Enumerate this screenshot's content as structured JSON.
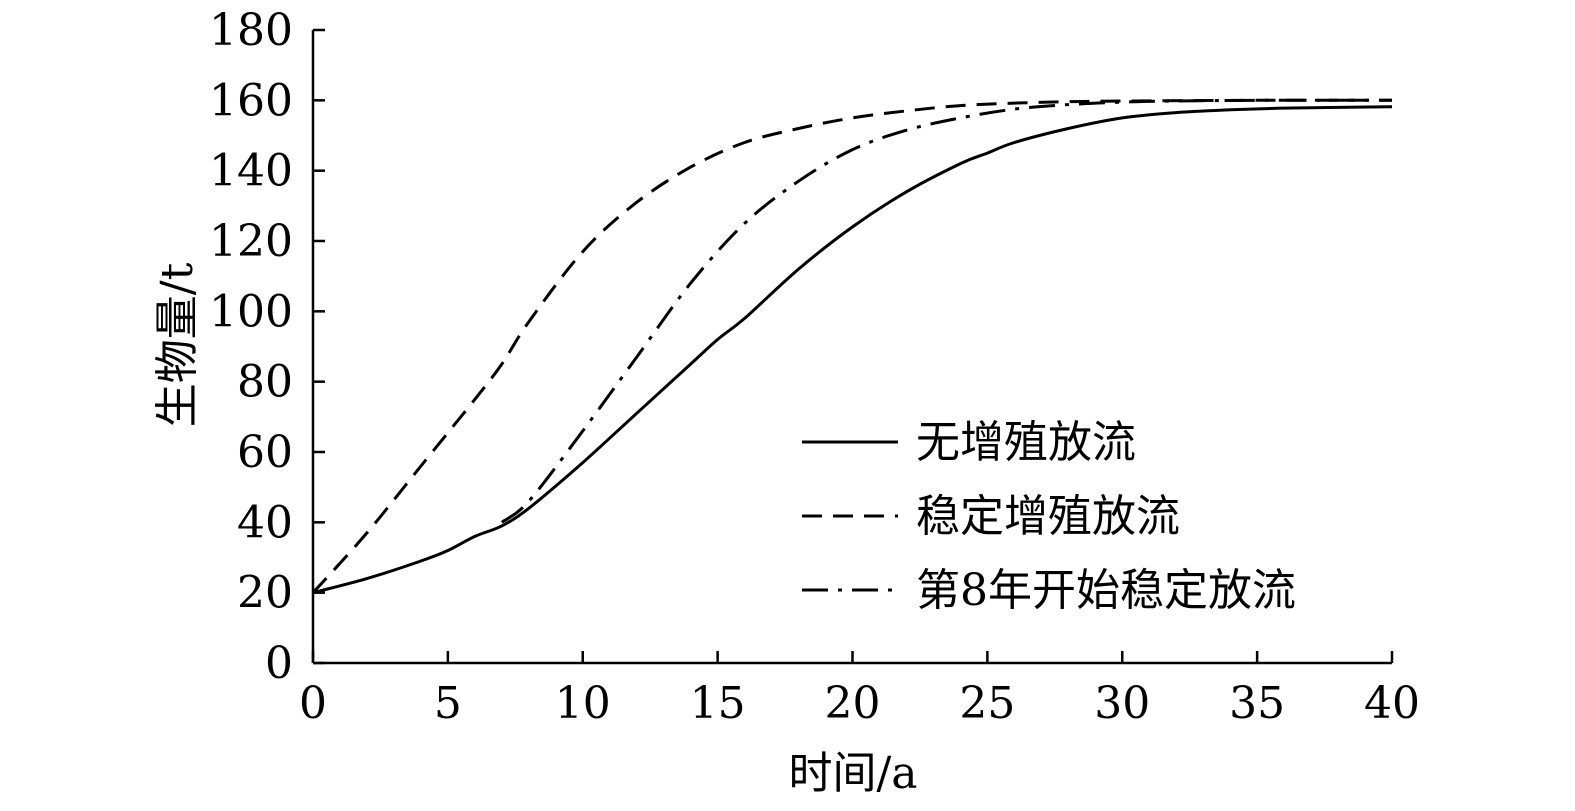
{
  "chart_data": {
    "type": "line",
    "xlabel": "时间/a",
    "ylabel": "生物量/t",
    "xlim": [
      0,
      40
    ],
    "ylim": [
      0,
      180
    ],
    "xticks": [
      0,
      5,
      10,
      15,
      20,
      25,
      30,
      35,
      40
    ],
    "yticks": [
      0,
      20,
      40,
      60,
      80,
      100,
      120,
      140,
      160,
      180
    ],
    "grid": false,
    "legend_position": "bottom-right",
    "series": [
      {
        "name": "无增殖放流",
        "style": "solid",
        "x": [
          0,
          2,
          4,
          5,
          6,
          7,
          8,
          10,
          12,
          14,
          15,
          16,
          18,
          20,
          22,
          24,
          25,
          26,
          28,
          30,
          32,
          34,
          36,
          38,
          40
        ],
        "y": [
          20,
          24,
          29,
          32,
          36,
          39,
          44,
          57,
          71,
          85,
          92,
          98,
          112,
          124,
          134,
          142,
          145,
          148,
          152,
          155,
          156.5,
          157.3,
          157.8,
          158,
          158.2
        ]
      },
      {
        "name": "稳定增殖放流",
        "style": "dashed",
        "x": [
          0,
          2,
          4,
          6,
          7,
          8,
          10,
          12,
          14,
          16,
          18,
          20,
          22,
          24,
          26,
          28,
          30,
          35,
          40
        ],
        "y": [
          20,
          37,
          56,
          75,
          85,
          97,
          117,
          131,
          141,
          148,
          152,
          155,
          157,
          158.5,
          159.2,
          159.6,
          159.8,
          160,
          160
        ]
      },
      {
        "name": "第8年开始稳定放流",
        "style": "dashdot",
        "x": [
          7,
          8,
          10,
          12,
          14,
          16,
          18,
          20,
          22,
          24,
          26,
          28,
          30,
          32,
          35,
          40
        ],
        "y": [
          40,
          46,
          66,
          87,
          108,
          125,
          137,
          146,
          151.5,
          155,
          157.5,
          158.8,
          159.5,
          159.8,
          160,
          160
        ]
      }
    ]
  }
}
